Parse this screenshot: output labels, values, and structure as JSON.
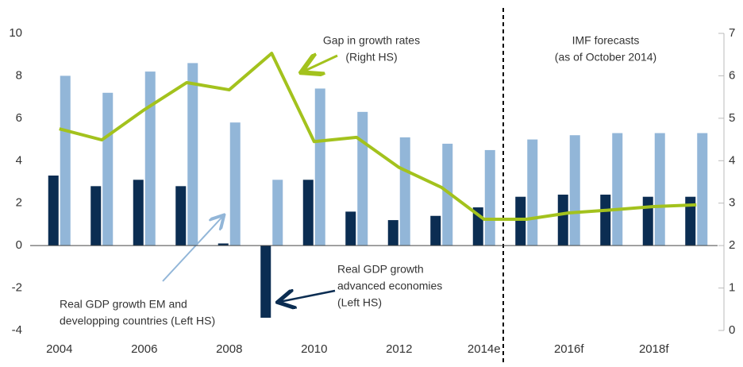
{
  "chart_data": {
    "type": "bar-line",
    "categories": [
      "2004",
      null,
      "2006",
      null,
      "2008",
      null,
      "2010",
      null,
      "2012",
      null,
      "2014e",
      null,
      "2016f",
      null,
      "2018f",
      null
    ],
    "series": [
      {
        "color": "#0b2d52",
        "values": [
          3.3,
          2.8,
          3.1,
          2.8,
          0.1,
          -3.4,
          3.1,
          1.6,
          1.2,
          1.4,
          1.8,
          2.3,
          2.4,
          2.4,
          2.3,
          2.3
        ]
      },
      {
        "color": "#92b6d8",
        "values": [
          8.0,
          7.2,
          8.2,
          8.6,
          5.8,
          3.1,
          7.4,
          6.3,
          5.1,
          4.8,
          4.5,
          5.0,
          5.2,
          5.3,
          5.3,
          5.3
        ]
      },
      {
        "color": "#a3c21d",
        "axis": "y2",
        "type": "line",
        "values": [
          4.75,
          4.49,
          5.2,
          5.84,
          5.67,
          6.53,
          4.45,
          4.55,
          3.84,
          3.37,
          2.62,
          2.62,
          2.77,
          2.84,
          2.92,
          2.96
        ]
      }
    ],
    "ylim": [
      -4,
      10
    ],
    "yticks": [
      -4,
      -2,
      0,
      2,
      4,
      6,
      8,
      10
    ],
    "y2lim": [
      0,
      7
    ],
    "y2ticks": [
      0,
      1,
      2,
      3,
      4,
      5,
      6,
      7
    ],
    "annotations": [
      [
        "Gap in growth rates",
        "(Right HS)"
      ],
      [
        "IMF forecasts",
        "(as of October 2014)"
      ],
      [
        "Real GDP growth",
        "advanced economies",
        "(Left HS)"
      ],
      [
        "Real GDP growth EM and",
        "developping countries (Left HS)"
      ]
    ]
  }
}
